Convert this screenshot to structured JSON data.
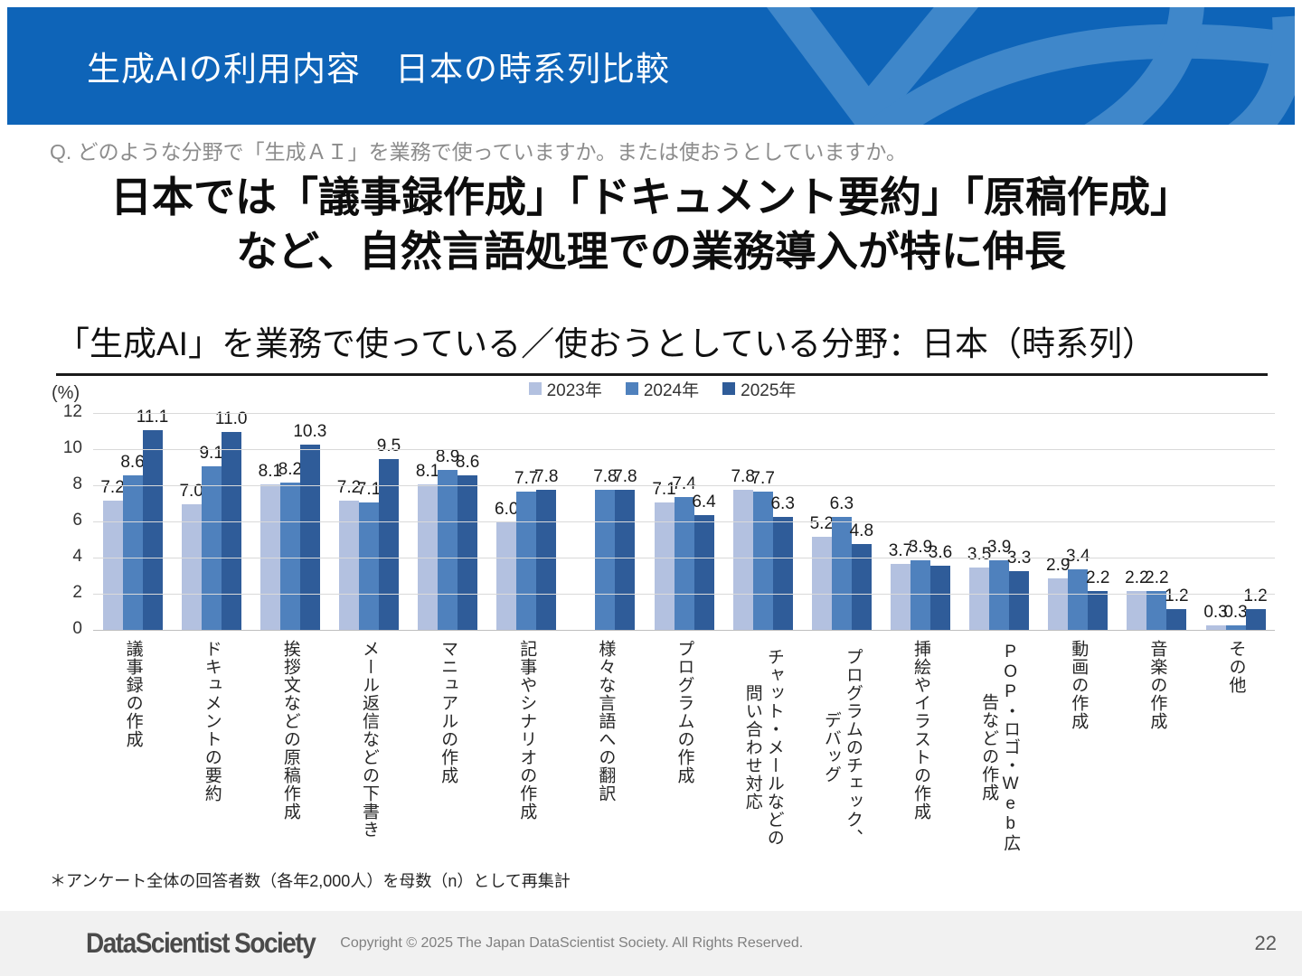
{
  "header": {
    "title": "生成AIの利用内容　日本の時系列比較",
    "bg_color": "#0e64b8",
    "deco_color": "#3f87ca"
  },
  "question": "Q. どのような分野で「生成ＡＩ」を業務で使っていますか。または使おうとしていますか。",
  "headline": {
    "line1": "日本では「議事録作成」「ドキュメント要約」「原稿作成」",
    "line2": "など、自然言語処理での業務導入が特に伸長"
  },
  "chart_title": "「生成AI」を業務で使っている／使おうとしている分野：日本（時系列）",
  "chart_data": {
    "type": "bar",
    "title": "「生成AI」を業務で使っている／使おうとしている分野：日本（時系列）",
    "unit_label": "(%)",
    "ylim": [
      0,
      12
    ],
    "yticks": [
      0,
      2,
      4,
      6,
      8,
      10,
      12
    ],
    "grid": true,
    "legend_position": "top",
    "categories": [
      "議事録の作成",
      "ドキュメントの要約",
      "挨拶文などの原稿作成",
      "メール返信などの下書き",
      "マニュアルの作成",
      "記事やシナリオの作成",
      "様々な言語への翻訳",
      "プログラムの作成",
      "チャット・メールなどの問い合わせ対応",
      "プログラムのチェック、デバッグ",
      "挿絵やイラストの作成",
      "POP・ロゴ・Web広告などの作成",
      "動画の作成",
      "音楽の作成",
      "その他"
    ],
    "series": [
      {
        "name": "2023年",
        "color": "#b3c1e0",
        "values": [
          7.2,
          7.0,
          8.1,
          7.2,
          8.1,
          6.0,
          null,
          7.1,
          7.8,
          5.2,
          3.7,
          3.5,
          2.9,
          2.2,
          0.3
        ]
      },
      {
        "name": "2024年",
        "color": "#4f81bd",
        "values": [
          8.6,
          9.1,
          8.2,
          7.1,
          8.9,
          7.7,
          7.8,
          7.4,
          7.7,
          6.3,
          3.9,
          3.9,
          3.4,
          2.2,
          0.3
        ]
      },
      {
        "name": "2025年",
        "color": "#2f5c99",
        "values": [
          11.1,
          11.0,
          10.3,
          9.5,
          8.6,
          7.8,
          7.8,
          6.4,
          6.3,
          4.8,
          3.6,
          3.3,
          2.2,
          1.2,
          1.2
        ]
      }
    ]
  },
  "footnote": "＊アンケート全体の回答者数（各年2,000人）を母数（n）として再集計",
  "footer": {
    "logo": "DataScientist Society",
    "copyright": "Copyright © 2025 The Japan DataScientist Society. All Rights Reserved.",
    "page": "22"
  }
}
